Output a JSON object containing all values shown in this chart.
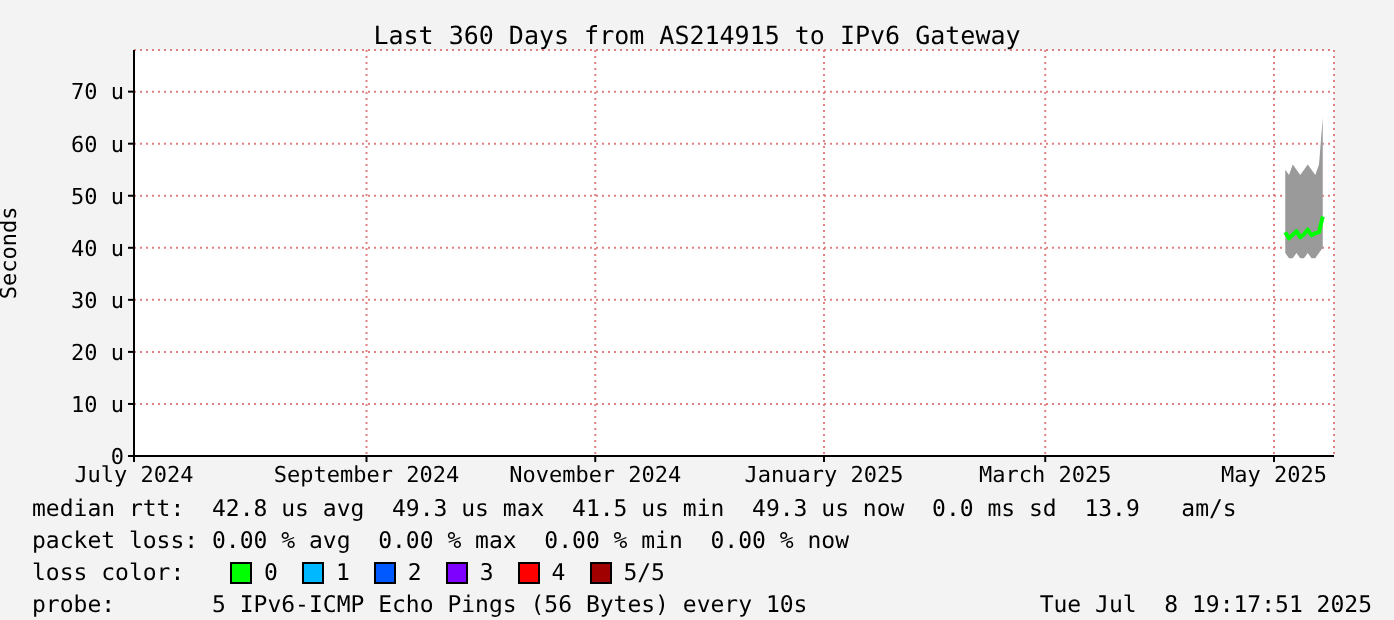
{
  "chart_data": {
    "type": "line",
    "title": "Last 360 Days from AS214915 to IPv6 Gateway",
    "ylabel": "Seconds",
    "x": [
      "2025-05-04",
      "2025-05-05",
      "2025-05-06",
      "2025-05-07",
      "2025-05-08",
      "2025-05-09",
      "2025-05-10",
      "2025-05-11",
      "2025-05-12",
      "2025-05-13",
      "2025-05-14"
    ],
    "series": [
      {
        "name": "0",
        "color": "#00ff00",
        "values": [
          43.0,
          41.8,
          42.5,
          43.2,
          42.0,
          42.6,
          43.5,
          42.4,
          42.8,
          43.0,
          46.0
        ],
        "lower": [
          39,
          38,
          38,
          39,
          38,
          38,
          39,
          38,
          38,
          39,
          40
        ],
        "upper": [
          55,
          54,
          56,
          55,
          54,
          55,
          56,
          55,
          54,
          56,
          65
        ]
      },
      {
        "name": "1",
        "color": "#00b8ff",
        "values": [
          null,
          null,
          null,
          null,
          null,
          null,
          null,
          null,
          null,
          null,
          null
        ]
      },
      {
        "name": "2",
        "color": "#0059ff",
        "values": [
          null,
          null,
          null,
          null,
          null,
          null,
          null,
          null,
          null,
          null,
          null
        ]
      },
      {
        "name": "3",
        "color": "#7e00ff",
        "values": [
          null,
          null,
          null,
          null,
          null,
          null,
          null,
          null,
          null,
          null,
          null
        ]
      },
      {
        "name": "4",
        "color": "#ff0000",
        "values": [
          null,
          null,
          null,
          null,
          null,
          null,
          null,
          null,
          null,
          null,
          null
        ]
      },
      {
        "name": "5/5",
        "color": "#a10000",
        "values": [
          null,
          null,
          null,
          null,
          null,
          null,
          null,
          null,
          null,
          null,
          null
        ]
      }
    ],
    "legend_title": "loss color:",
    "legend": "bottom",
    "xlim": [
      "2024-07-01",
      "2025-05-17"
    ],
    "xticks": [
      {
        "value": "2024-07-01",
        "label": "July 2024"
      },
      {
        "value": "2024-09-01",
        "label": "September 2024"
      },
      {
        "value": "2024-11-01",
        "label": "November 2024"
      },
      {
        "value": "2025-01-01",
        "label": "January 2025"
      },
      {
        "value": "2025-03-01",
        "label": "March 2025"
      },
      {
        "value": "2025-05-01",
        "label": "May 2025"
      }
    ],
    "ylim": [
      0,
      78
    ],
    "yticks": [
      0,
      {
        "value": 10,
        "label": "10 u"
      },
      {
        "value": 20,
        "label": "20 u"
      },
      {
        "value": 30,
        "label": "30 u"
      },
      {
        "value": 40,
        "label": "40 u"
      },
      {
        "value": 50,
        "label": "50 u"
      },
      {
        "value": 60,
        "label": "60 u"
      },
      {
        "value": 70,
        "label": "70 u"
      }
    ],
    "grid": true,
    "annotations": [
      "median rtt:  42.8 us avg  49.3 us max  41.5 us min  49.3 us now  0.0 ms sd  13.9   am/s",
      "packet loss: 0.00 % avg  0.00 % max  0.00 % min  0.00 % now",
      "probe:       5 IPv6-ICMP Echo Pings (56 Bytes) every 10s",
      "Tue Jul  8 19:17:51 2025"
    ]
  }
}
